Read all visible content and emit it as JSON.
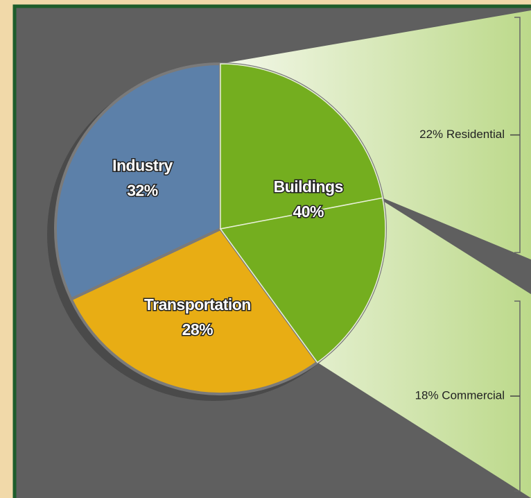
{
  "chart_data": {
    "type": "pie",
    "categories": [
      "Buildings",
      "Transportation",
      "Industry"
    ],
    "values": [
      40,
      28,
      32
    ],
    "value_labels": [
      "40%",
      "28%",
      "32%"
    ],
    "colors": [
      "#74ae1f",
      "#e8ad14",
      "#5c80a9"
    ],
    "breakdown": {
      "of": "Buildings",
      "categories": [
        "Residential",
        "Commercial"
      ],
      "values": [
        22,
        18
      ],
      "value_labels": [
        "22% Residential",
        "18% Commercial"
      ]
    }
  }
}
